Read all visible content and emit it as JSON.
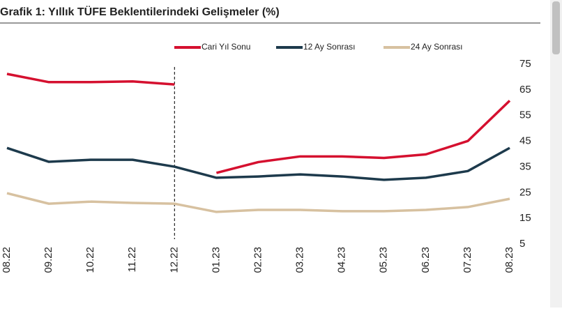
{
  "chart_data": {
    "type": "line",
    "title": "Grafik 1: Yıllık TÜFE Beklentilerindeki Gelişmeler (%)",
    "categories": [
      "08.22",
      "09.22",
      "10.22",
      "11.22",
      "12.22",
      "01.23",
      "02.23",
      "03.23",
      "04.23",
      "05.23",
      "06.23",
      "07.23",
      "08.23"
    ],
    "divider": "12.22",
    "series": [
      {
        "name": "Cari Yıl Sonu",
        "color": "#d5102f",
        "break_at_divider": true,
        "values": [
          71.2,
          68.0,
          68.0,
          68.3,
          67.1,
          32.7,
          36.9,
          39.1,
          39.1,
          38.5,
          39.9,
          45.1,
          60.8
        ]
      },
      {
        "name": "12 Ay Sonrası",
        "color": "#1d3a4c",
        "break_at_divider": false,
        "values": [
          42.4,
          37.0,
          37.8,
          37.8,
          35.1,
          30.8,
          31.3,
          32.1,
          31.3,
          30.0,
          30.8,
          33.4,
          42.4
        ]
      },
      {
        "name": "24 Ay Sonrası",
        "color": "#d7c1a0",
        "break_at_divider": false,
        "values": [
          24.8,
          20.7,
          21.5,
          21.0,
          20.7,
          17.5,
          18.3,
          18.3,
          17.8,
          17.8,
          18.3,
          19.4,
          22.6
        ]
      }
    ],
    "ylim": [
      5,
      75
    ],
    "yticks": [
      75,
      65,
      55,
      45,
      35,
      25,
      15,
      5
    ],
    "y_axis_side": "right"
  }
}
